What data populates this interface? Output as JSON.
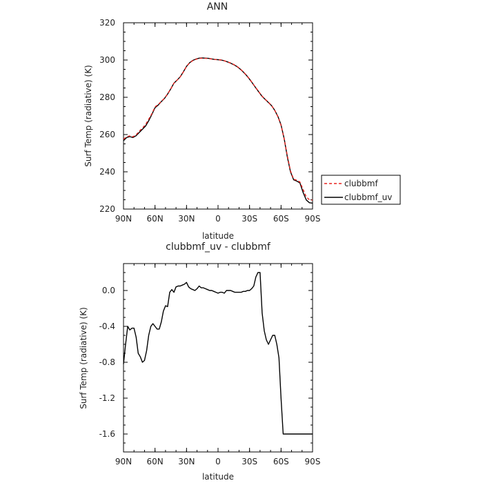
{
  "chart_data": [
    {
      "type": "line",
      "title": "ANN",
      "xlabel": "latitude",
      "ylabel": "Surf Temp (radiative) (K)",
      "xlim": [
        -90,
        90
      ],
      "ylim": [
        220,
        320
      ],
      "xticks": [
        {
          "v": -90,
          "label": "90N"
        },
        {
          "v": -60,
          "label": "60N"
        },
        {
          "v": -30,
          "label": "30N"
        },
        {
          "v": 0,
          "label": "0"
        },
        {
          "v": 30,
          "label": "30S"
        },
        {
          "v": 60,
          "label": "60S"
        },
        {
          "v": 90,
          "label": "90S"
        }
      ],
      "yticks": [
        {
          "v": 220,
          "label": "220"
        },
        {
          "v": 240,
          "label": "240"
        },
        {
          "v": 260,
          "label": "260"
        },
        {
          "v": 280,
          "label": "280"
        },
        {
          "v": 300,
          "label": "300"
        },
        {
          "v": 320,
          "label": "320"
        }
      ],
      "legend": {
        "placement": "right"
      },
      "series": [
        {
          "name": "clubbmf",
          "color": "#e8221e",
          "dash": "4,3",
          "x": [
            -90,
            -87,
            -84,
            -81,
            -78,
            -75,
            -72,
            -69,
            -66,
            -63,
            -60,
            -57,
            -54,
            -51,
            -48,
            -45,
            -42,
            -39,
            -36,
            -33,
            -30,
            -27,
            -24,
            -21,
            -18,
            -15,
            -12,
            -9,
            -6,
            -3,
            0,
            3,
            6,
            9,
            12,
            15,
            18,
            21,
            24,
            27,
            30,
            33,
            36,
            39,
            42,
            45,
            48,
            51,
            54,
            57,
            60,
            63,
            66,
            69,
            72,
            75,
            78,
            81,
            84,
            87,
            90
          ],
          "y": [
            257.5,
            258.8,
            259.3,
            258.8,
            259.8,
            261.8,
            263.5,
            265.4,
            268.2,
            271.2,
            274.8,
            276.2,
            277.7,
            279.5,
            281.8,
            284.5,
            287.6,
            289.2,
            291.0,
            293.6,
            296.5,
            298.5,
            299.7,
            300.4,
            300.9,
            301.0,
            300.9,
            300.8,
            300.5,
            300.3,
            300.2,
            300.0,
            299.6,
            299.0,
            298.4,
            297.6,
            296.6,
            295.3,
            293.7,
            291.9,
            289.8,
            287.5,
            285.1,
            282.8,
            280.6,
            278.9,
            277.3,
            275.6,
            273.0,
            269.5,
            265.0,
            257.5,
            248.5,
            240.5,
            236.0,
            235.5,
            234.5,
            230.5,
            226.5,
            225.0,
            224.8
          ]
        },
        {
          "name": "clubbmf_uv",
          "color": "#000000",
          "dash": "",
          "x": [
            -90,
            -87,
            -84,
            -81,
            -78,
            -75,
            -72,
            -69,
            -66,
            -63,
            -60,
            -57,
            -54,
            -51,
            -48,
            -45,
            -42,
            -39,
            -36,
            -33,
            -30,
            -27,
            -24,
            -21,
            -18,
            -15,
            -12,
            -9,
            -6,
            -3,
            0,
            3,
            6,
            9,
            12,
            15,
            18,
            21,
            24,
            27,
            30,
            33,
            36,
            39,
            42,
            45,
            48,
            51,
            54,
            57,
            60,
            63,
            66,
            69,
            72,
            75,
            78,
            81,
            84,
            87,
            90
          ],
          "y": [
            256.7,
            258.4,
            258.9,
            258.4,
            259.4,
            261.1,
            262.8,
            264.6,
            267.4,
            270.8,
            274.4,
            275.8,
            277.7,
            279.4,
            281.7,
            284.5,
            287.6,
            289.2,
            291.0,
            293.7,
            296.6,
            298.6,
            299.8,
            300.5,
            301.0,
            301.1,
            301.0,
            300.9,
            300.6,
            300.3,
            300.2,
            300.0,
            299.6,
            299.0,
            298.3,
            297.5,
            296.5,
            295.2,
            293.6,
            291.8,
            289.7,
            287.4,
            285.0,
            282.7,
            280.5,
            278.8,
            277.2,
            275.5,
            273.0,
            269.7,
            265.2,
            257.7,
            247.8,
            240.0,
            235.7,
            235.0,
            234.0,
            228.9,
            224.9,
            223.4,
            223.2
          ]
        }
      ]
    },
    {
      "type": "line",
      "title": "clubbmf_uv - clubbmf",
      "xlabel": "latitude",
      "ylabel": "Surf Temp (radiative) (K)",
      "xlim": [
        -90,
        90
      ],
      "ylim": [
        -1.8,
        0.3
      ],
      "xticks": [
        {
          "v": -90,
          "label": "90N"
        },
        {
          "v": -60,
          "label": "60N"
        },
        {
          "v": -30,
          "label": "30N"
        },
        {
          "v": 0,
          "label": "0"
        },
        {
          "v": 30,
          "label": "30S"
        },
        {
          "v": 60,
          "label": "60S"
        },
        {
          "v": 90,
          "label": "90S"
        }
      ],
      "yticks": [
        {
          "v": -1.6,
          "label": "-1.6"
        },
        {
          "v": -1.2,
          "label": "-1.2"
        },
        {
          "v": -0.8,
          "label": "-0.8"
        },
        {
          "v": -0.4,
          "label": "-0.4"
        },
        {
          "v": 0.0,
          "label": "0.0"
        }
      ],
      "series": [
        {
          "name": "",
          "color": "#000000",
          "dash": "",
          "x": [
            -90,
            -88,
            -86,
            -84,
            -82,
            -80,
            -78,
            -76,
            -74,
            -72,
            -70,
            -68,
            -66,
            -64,
            -62,
            -60,
            -58,
            -56,
            -54,
            -52,
            -50,
            -48,
            -46,
            -44,
            -42,
            -40,
            -38,
            -36,
            -34,
            -32,
            -30,
            -28,
            -26,
            -24,
            -22,
            -20,
            -18,
            -16,
            -14,
            -12,
            -10,
            -8,
            -6,
            -4,
            -2,
            0,
            2,
            4,
            6,
            8,
            10,
            12,
            14,
            16,
            18,
            20,
            22,
            24,
            26,
            28,
            30,
            32,
            34,
            36,
            38,
            40,
            42,
            44,
            46,
            48,
            50,
            52,
            54,
            56,
            58,
            60,
            62,
            64,
            66,
            68,
            70,
            72,
            74,
            76,
            78,
            80,
            82,
            84,
            86,
            88,
            90
          ],
          "y": [
            -0.82,
            -0.6,
            -0.4,
            -0.44,
            -0.42,
            -0.42,
            -0.52,
            -0.7,
            -0.74,
            -0.8,
            -0.78,
            -0.67,
            -0.5,
            -0.4,
            -0.37,
            -0.4,
            -0.43,
            -0.43,
            -0.35,
            -0.23,
            -0.17,
            -0.18,
            -0.02,
            0.01,
            -0.02,
            0.04,
            0.05,
            0.05,
            0.06,
            0.07,
            0.09,
            0.04,
            0.02,
            0.01,
            0.0,
            0.02,
            0.05,
            0.03,
            0.03,
            0.02,
            0.01,
            0.0,
            0.0,
            -0.01,
            -0.02,
            -0.03,
            -0.02,
            -0.02,
            -0.03,
            0.0,
            0.0,
            0.0,
            -0.01,
            -0.02,
            -0.02,
            -0.02,
            -0.02,
            -0.01,
            -0.01,
            0.0,
            0.0,
            0.02,
            0.05,
            0.15,
            0.2,
            0.2,
            -0.25,
            -0.45,
            -0.55,
            -0.6,
            -0.55,
            -0.5,
            -0.5,
            -0.6,
            -0.75,
            -1.2,
            -1.6,
            -1.6,
            -1.6,
            -1.6,
            -1.6,
            -1.6,
            -1.6,
            -1.6,
            -1.6,
            -1.6,
            -1.6,
            -1.6,
            -1.6,
            -1.6,
            -1.6
          ]
        }
      ]
    }
  ]
}
